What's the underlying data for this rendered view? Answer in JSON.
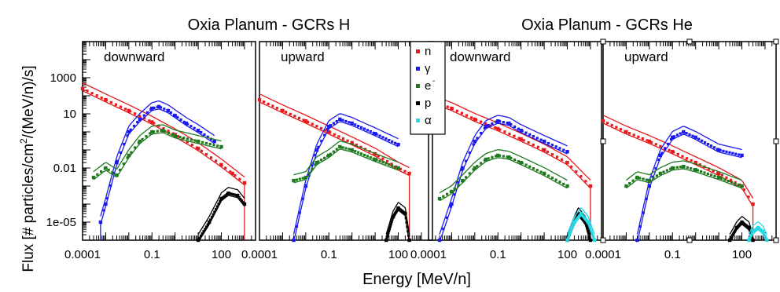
{
  "figure": {
    "titles": [
      "Oxia Planum - GCRs H",
      "Oxia Planum - GCRs He"
    ],
    "ylabel_main": "Flux [# particles/cm",
    "ylabel_sup": "2",
    "ylabel_tail": "/(MeV/n)/s]",
    "xlabel": "Energy [MeV/n]"
  },
  "chart_data": {
    "type": "line",
    "x_scale": "log",
    "y_scale": "log",
    "xlim": [
      0.0001,
      3000
    ],
    "ylim": [
      1e-06,
      100000.0
    ],
    "x_tick_labels": [
      {
        "value": 0.0001,
        "label": "0.0001"
      },
      {
        "value": 0.1,
        "label": "0.1"
      },
      {
        "value": 100,
        "label": "100"
      }
    ],
    "y_tick_labels": [
      {
        "value": 1000,
        "label": "1000"
      },
      {
        "value": 10,
        "label": "10"
      },
      {
        "value": 0.01,
        "label": "0.01"
      },
      {
        "value": 1e-05,
        "label": "1e-05"
      }
    ],
    "legend": {
      "placement": "between panels, top",
      "entries": [
        {
          "label": "n",
          "color": "#e8191b",
          "sup": ""
        },
        {
          "label": "γ",
          "color": "#1a1af0",
          "sup": ""
        },
        {
          "label": "e",
          "color": "#1f7a1f",
          "sup": "-"
        },
        {
          "label": "p",
          "color": "#000000",
          "sup": ""
        },
        {
          "label": "α",
          "color": "#25d9e6",
          "sup": ""
        }
      ]
    },
    "panels": [
      {
        "label": "downward",
        "series": [
          {
            "name": "n",
            "color": "#e8191b",
            "x": [
              0.0001,
              0.001,
              0.01,
              0.1,
              1,
              10,
              100,
              300,
              1000
            ],
            "y": [
              250,
              60,
              15,
              3.5,
              0.7,
              0.12,
              0.015,
              0.005,
              0.0015
            ],
            "x_end": 1000
          },
          {
            "name": "γ",
            "color": "#1a1af0",
            "x": [
              0.0006,
              0.001,
              0.003,
              0.01,
              0.03,
              0.1,
              0.2,
              0.5,
              1,
              3,
              10,
              50
            ],
            "y": [
              1e-05,
              0.0001,
              0.02,
              1,
              5,
              20,
              25,
              15,
              8,
              3,
              1.2,
              0.3
            ],
            "x_start": 0.0006
          },
          {
            "name": "e",
            "sup": "-",
            "color": "#1f7a1f",
            "x": [
              0.0003,
              0.001,
              0.003,
              0.01,
              0.03,
              0.1,
              0.3,
              1,
              10,
              100
            ],
            "y": [
              0.003,
              0.01,
              0.004,
              0.05,
              0.3,
              1,
              1.2,
              0.6,
              0.3,
              0.15
            ]
          },
          {
            "name": "p",
            "color": "#000000",
            "x": [
              10,
              30,
              100,
              200,
              500,
              1000
            ],
            "y": [
              1e-06,
              1e-05,
              0.0002,
              0.0004,
              0.0003,
              0.0001
            ]
          }
        ]
      },
      {
        "label": "upward",
        "series": [
          {
            "name": "n",
            "color": "#e8191b",
            "x": [
              0.0001,
              0.001,
              0.01,
              0.1,
              1,
              10,
              100,
              300
            ],
            "y": [
              60,
              15,
              4,
              1,
              0.25,
              0.06,
              0.01,
              0.005
            ],
            "x_end": 300
          },
          {
            "name": "γ",
            "color": "#1a1af0",
            "x": [
              0.003,
              0.01,
              0.03,
              0.1,
              0.3,
              1,
              10,
              100
            ],
            "y": [
              1e-06,
              0.001,
              0.1,
              2,
              5,
              3,
              0.8,
              0.2
            ],
            "x_start": 0.003
          },
          {
            "name": "e",
            "sup": "-",
            "color": "#1f7a1f",
            "x": [
              0.003,
              0.01,
              0.03,
              0.1,
              0.3,
              1,
              10,
              100
            ],
            "y": [
              0.002,
              0.003,
              0.02,
              0.05,
              0.15,
              0.1,
              0.03,
              0.01
            ]
          },
          {
            "name": "p",
            "color": "#000000",
            "x": [
              30,
              60,
              100,
              200,
              300
            ],
            "y": [
              1e-06,
              2e-05,
              6e-05,
              3e-05,
              1e-06
            ]
          }
        ]
      },
      {
        "label": "downward",
        "series": [
          {
            "name": "n",
            "color": "#e8191b",
            "x": [
              0.0001,
              0.001,
              0.01,
              0.1,
              1,
              10,
              100,
              1000
            ],
            "y": [
              60,
              20,
              5,
              1.5,
              0.4,
              0.1,
              0.02,
              0.001
            ],
            "x_end": 1000
          },
          {
            "name": "γ",
            "color": "#1a1af0",
            "x": [
              0.0003,
              0.001,
              0.003,
              0.01,
              0.03,
              0.1,
              0.3,
              1,
              10,
              100
            ],
            "y": [
              1e-06,
              0.0001,
              0.01,
              0.3,
              2,
              4,
              3,
              1.2,
              0.3,
              0.08
            ],
            "x_start": 0.0003
          },
          {
            "name": "e",
            "sup": "-",
            "color": "#1f7a1f",
            "x": [
              0.0003,
              0.001,
              0.003,
              0.01,
              0.03,
              0.1,
              0.3,
              1,
              10,
              100
            ],
            "y": [
              0.0002,
              0.0005,
              0.002,
              0.01,
              0.03,
              0.05,
              0.04,
              0.02,
              0.005,
              0.001
            ]
          },
          {
            "name": "p",
            "color": "#000000",
            "x": [
              100,
              200,
              300,
              600,
              1000
            ],
            "y": [
              1e-06,
              1e-05,
              3e-05,
              1e-05,
              1e-06
            ]
          },
          {
            "name": "α",
            "color": "#25d9e6",
            "x": [
              100,
              200,
              400,
              800,
              1500
            ],
            "y": [
              1e-06,
              1e-05,
              3e-05,
              1e-05,
              1e-06
            ]
          }
        ]
      },
      {
        "label": "upward",
        "series": [
          {
            "name": "n",
            "color": "#e8191b",
            "x": [
              0.0001,
              0.001,
              0.01,
              0.1,
              1,
              10,
              100,
              300
            ],
            "y": [
              4,
              1,
              0.3,
              0.08,
              0.02,
              0.005,
              0.001,
              0.0001
            ],
            "x_end": 300
          },
          {
            "name": "γ",
            "color": "#1a1af0",
            "x": [
              0.003,
              0.01,
              0.03,
              0.1,
              0.3,
              1,
              10,
              100
            ],
            "y": [
              1e-06,
              0.001,
              0.05,
              0.5,
              1,
              0.5,
              0.1,
              0.05
            ],
            "x_start": 0.003
          },
          {
            "name": "e",
            "sup": "-",
            "color": "#1f7a1f",
            "x": [
              0.001,
              0.003,
              0.01,
              0.03,
              0.1,
              0.3,
              1,
              10,
              100
            ],
            "y": [
              0.001,
              0.003,
              0.002,
              0.005,
              0.01,
              0.012,
              0.008,
              0.003,
              0.001
            ]
          },
          {
            "name": "p",
            "color": "#000000",
            "x": [
              30,
              60,
              100,
              200,
              300
            ],
            "y": [
              1e-06,
              5e-06,
              1e-05,
              5e-06,
              1e-06
            ]
          },
          {
            "name": "α",
            "color": "#25d9e6",
            "x": [
              200,
              300,
              500,
              800,
              1200
            ],
            "y": [
              1e-06,
              3e-06,
              5e-06,
              3e-06,
              1e-06
            ]
          }
        ]
      }
    ]
  }
}
